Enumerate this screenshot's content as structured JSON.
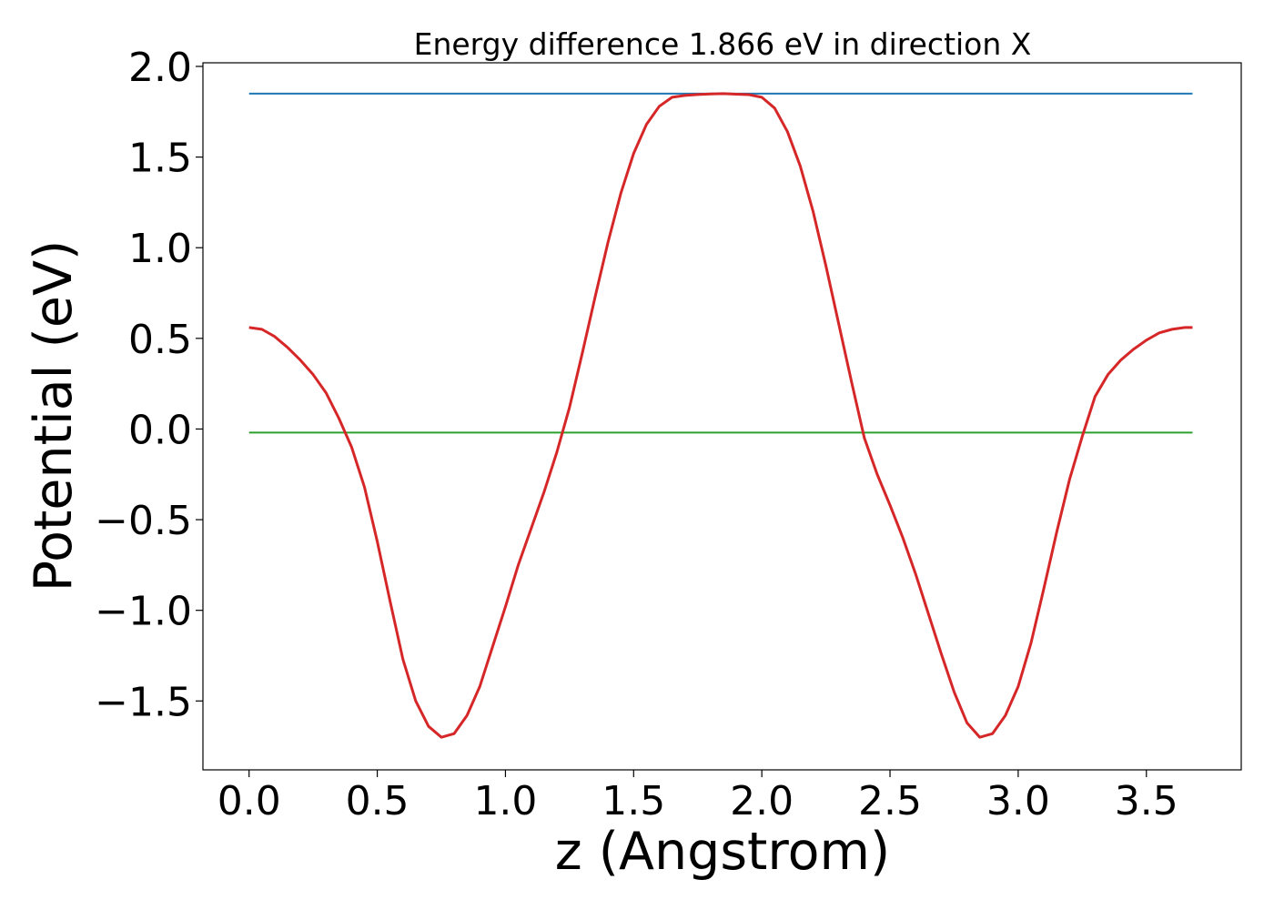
{
  "chart_data": {
    "type": "line",
    "title": "Energy difference 1.866 eV in direction X",
    "xlabel": "z (Angstrom)",
    "ylabel": "Potential (eV)",
    "xlim": [
      -0.18,
      3.87
    ],
    "ylim": [
      -1.88,
      2.02
    ],
    "xticks": [
      0.0,
      0.5,
      1.0,
      1.5,
      2.0,
      2.5,
      3.0,
      3.5
    ],
    "xtick_labels": [
      "0.0",
      "0.5",
      "1.0",
      "1.5",
      "2.0",
      "2.5",
      "3.0",
      "3.5"
    ],
    "yticks": [
      -1.5,
      -1.0,
      -0.5,
      0.0,
      0.5,
      1.0,
      1.5,
      2.0
    ],
    "ytick_labels": [
      "−1.5",
      "−1.0",
      "−0.5",
      "0.0",
      "0.5",
      "1.0",
      "1.5",
      "2.0"
    ],
    "grid": false,
    "series": [
      {
        "color": "#d62728",
        "x": [
          0.0,
          0.05,
          0.1,
          0.15,
          0.2,
          0.25,
          0.3,
          0.35,
          0.4,
          0.45,
          0.5,
          0.55,
          0.6,
          0.65,
          0.7,
          0.75,
          0.8,
          0.85,
          0.9,
          0.95,
          1.0,
          1.05,
          1.1,
          1.15,
          1.2,
          1.25,
          1.3,
          1.35,
          1.4,
          1.45,
          1.5,
          1.55,
          1.6,
          1.65,
          1.7,
          1.75,
          1.8,
          1.85,
          1.9,
          1.95,
          2.0,
          2.05,
          2.1,
          2.15,
          2.2,
          2.25,
          2.3,
          2.35,
          2.4,
          2.45,
          2.5,
          2.55,
          2.6,
          2.65,
          2.7,
          2.75,
          2.8,
          2.85,
          2.9,
          2.95,
          3.0,
          3.05,
          3.1,
          3.15,
          3.2,
          3.25,
          3.3,
          3.35,
          3.4,
          3.45,
          3.5,
          3.55,
          3.6,
          3.65,
          3.68
        ],
        "y": [
          0.56,
          0.55,
          0.51,
          0.45,
          0.38,
          0.3,
          0.2,
          0.06,
          -0.1,
          -0.32,
          -0.62,
          -0.95,
          -1.27,
          -1.5,
          -1.64,
          -1.7,
          -1.68,
          -1.58,
          -1.42,
          -1.2,
          -0.98,
          -0.75,
          -0.55,
          -0.35,
          -0.13,
          0.12,
          0.42,
          0.73,
          1.03,
          1.3,
          1.52,
          1.68,
          1.78,
          1.83,
          1.84,
          1.845,
          1.848,
          1.85,
          1.847,
          1.844,
          1.83,
          1.77,
          1.64,
          1.45,
          1.2,
          0.9,
          0.58,
          0.26,
          -0.05,
          -0.25,
          -0.42,
          -0.6,
          -0.8,
          -1.02,
          -1.24,
          -1.45,
          -1.62,
          -1.7,
          -1.68,
          -1.58,
          -1.42,
          -1.18,
          -0.88,
          -0.57,
          -0.28,
          -0.04,
          0.18,
          0.3,
          0.38,
          0.44,
          0.49,
          0.53,
          0.55,
          0.56,
          0.56
        ]
      },
      {
        "color": "#1f77b4",
        "x": [
          0.0,
          3.68
        ],
        "y": [
          1.85,
          1.85
        ]
      },
      {
        "color": "#2ca02c",
        "x": [
          0.0,
          3.68
        ],
        "y": [
          -0.02,
          -0.02
        ]
      }
    ]
  }
}
